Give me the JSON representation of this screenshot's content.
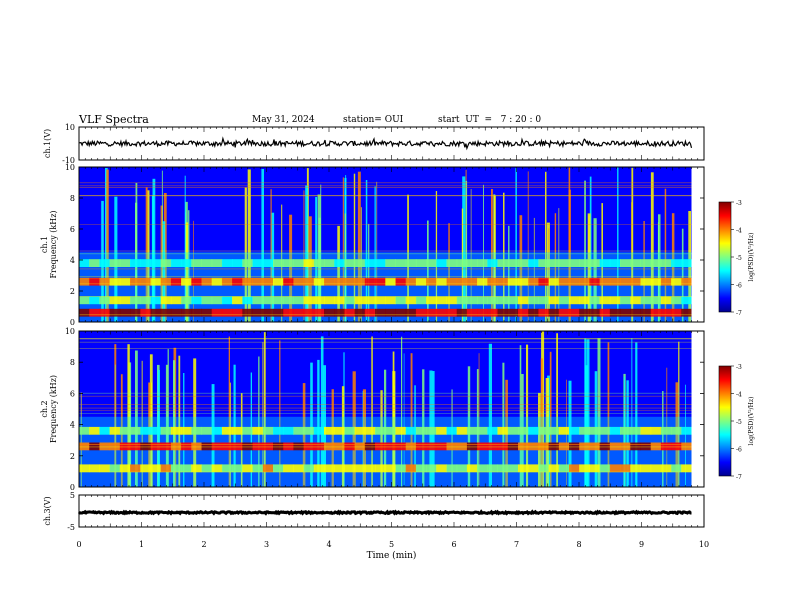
{
  "header": {
    "title": "VLF Spectra",
    "date": "May 31, 2024",
    "station": "station= OUI",
    "start_ut": "start  UT  =   7 : 20 : 0"
  },
  "colors": {
    "colormap": [
      "#00008f",
      "#0000ff",
      "#0080ff",
      "#00ffff",
      "#80ff80",
      "#ffff00",
      "#ff8000",
      "#ff0000",
      "#800000"
    ],
    "waveform": "#000000"
  },
  "chart_data": [
    {
      "type": "line",
      "panel": "ch1-waveform",
      "ylabel": "ch.1(V)",
      "ylim": [
        -10,
        10
      ],
      "y_ticks": [
        "10",
        "-10"
      ],
      "xlim": [
        0,
        10
      ],
      "series": [
        {
          "mean": 0,
          "amplitude_v": 1.5,
          "end_min": 9.8
        }
      ]
    },
    {
      "type": "heatmap",
      "panel": "ch1-spectrogram",
      "ylabel": "Frequency  (kHz)",
      "ylabel2": "ch.1",
      "ylim": [
        0,
        10
      ],
      "y_ticks": [
        "0",
        "2",
        "4",
        "6",
        "8",
        "10"
      ],
      "xlim": [
        0,
        10
      ],
      "data_end_min": 9.8,
      "colorbar": {
        "label": "log(PSD)(V²/Hz)",
        "range": [
          -7,
          -3
        ],
        "ticks": [
          "-3",
          "-4",
          "-5",
          "-6",
          "-7"
        ]
      },
      "bands": [
        {
          "freq_khz": 0.6,
          "level": 0.95
        },
        {
          "freq_khz": 1.4,
          "level": 0.55
        },
        {
          "freq_khz": 2.6,
          "level": 0.75
        },
        {
          "freq_khz": 3.8,
          "level": 0.45
        }
      ]
    },
    {
      "type": "heatmap",
      "panel": "ch2-spectrogram",
      "ylabel": "Frequency  (kHz)",
      "ylabel2": "ch.2",
      "ylim": [
        0,
        10
      ],
      "y_ticks": [
        "0",
        "2",
        "4",
        "6",
        "8",
        "10"
      ],
      "xlim": [
        0,
        10
      ],
      "data_end_min": 9.8,
      "colorbar": {
        "label": "log(PSD)(V²/Hz)",
        "range": [
          -7,
          -3
        ],
        "ticks": [
          "-3",
          "-4",
          "-5",
          "-6",
          "-7"
        ]
      },
      "bands": [
        {
          "freq_khz": 1.2,
          "level": 0.6
        },
        {
          "freq_khz": 2.6,
          "level": 0.85
        },
        {
          "freq_khz": 3.6,
          "level": 0.5
        }
      ]
    },
    {
      "type": "line",
      "panel": "ch3-waveform",
      "ylabel": "ch.3(V)",
      "ylim": [
        -5,
        5
      ],
      "y_ticks": [
        "5",
        "-5"
      ],
      "xlim": [
        0,
        10
      ],
      "series": [
        {
          "mean": -0.5,
          "amplitude_v": 0.25,
          "end_min": 9.8
        }
      ]
    }
  ],
  "x_axis": {
    "label": "Time  (min)",
    "ticks": [
      "0",
      "1",
      "2",
      "3",
      "4",
      "5",
      "6",
      "7",
      "8",
      "9",
      "10"
    ]
  }
}
